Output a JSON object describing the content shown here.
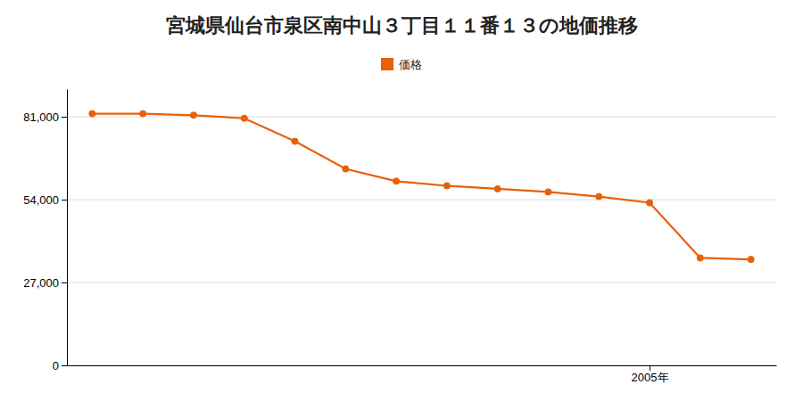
{
  "chart_data": {
    "type": "line",
    "title": "宮城県仙台市泉区南中山３丁目１１番１３の地価推移",
    "x": [
      1994,
      1995,
      1996,
      1997,
      1998,
      1999,
      2000,
      2001,
      2002,
      2003,
      2004,
      2005,
      2006,
      2007
    ],
    "series": [
      {
        "name": "価格",
        "color": "#E8600A",
        "marker": "circle",
        "values": [
          82000,
          82000,
          81500,
          80500,
          73000,
          64000,
          60000,
          58500,
          57500,
          56500,
          55000,
          53000,
          35000,
          34500
        ]
      }
    ],
    "xlim": [
      1993.5,
      2007.5
    ],
    "xticks": [
      {
        "value": 2005,
        "label": "2005年"
      }
    ],
    "ylim": [
      0,
      90000
    ],
    "yticks": [
      0,
      {
        "value": 27000,
        "label": "27,000"
      },
      {
        "value": 54000,
        "label": "54,000"
      },
      {
        "value": 81000,
        "label": "81,000"
      }
    ],
    "grid": true,
    "legend": "top"
  }
}
